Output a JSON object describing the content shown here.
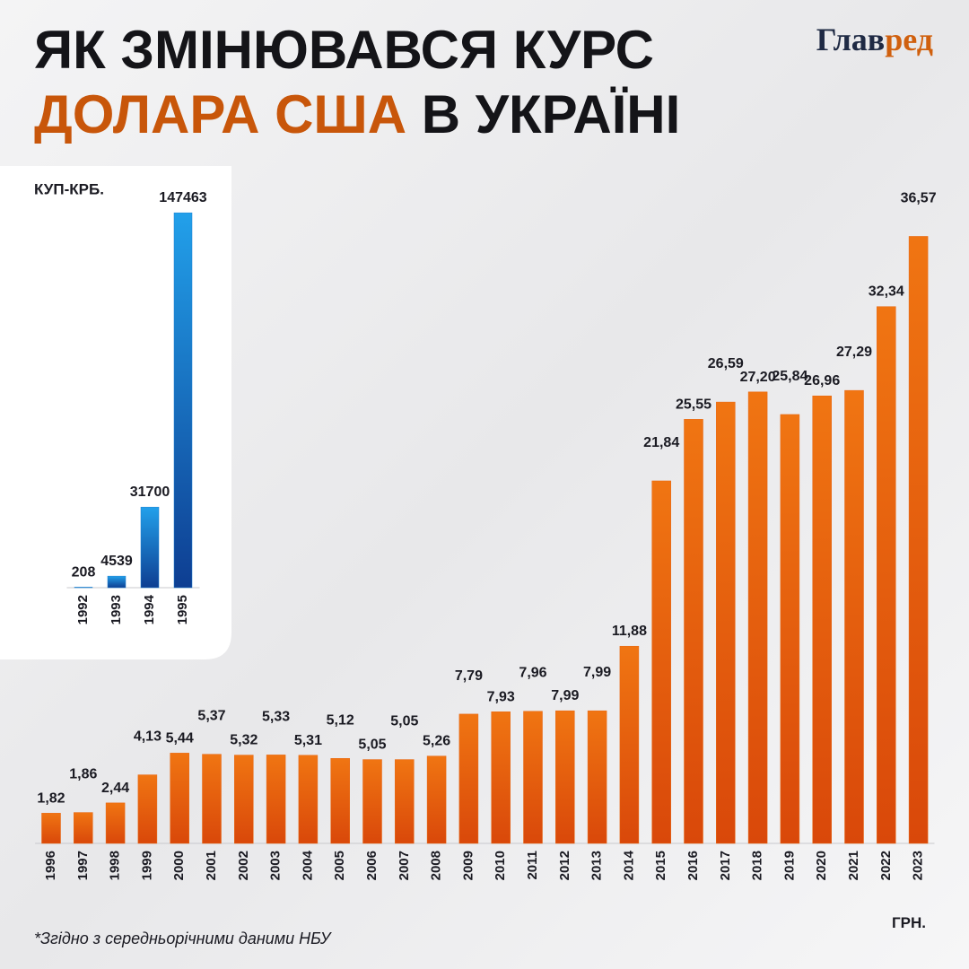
{
  "header": {
    "title_line1": "ЯК ЗМІНЮВАВСЯ КУРС",
    "title_line2_highlight": "ДОЛАРА США",
    "title_line2_rest": "В УКРАЇНІ",
    "logo_part1": "Глав",
    "logo_part2": "ред"
  },
  "footnote": "*Згідно з середньорічними даними НБУ",
  "chart_data": [
    {
      "type": "bar",
      "unit": "ГРН.",
      "color": "#e8650f",
      "categories": [
        "1996",
        "1997",
        "1998",
        "1999",
        "2000",
        "2001",
        "2002",
        "2003",
        "2004",
        "2005",
        "2006",
        "2007",
        "2008",
        "2009",
        "2010",
        "2011",
        "2012",
        "2013",
        "2014",
        "2015",
        "2016",
        "2017",
        "2018",
        "2019",
        "2020",
        "2021",
        "2022",
        "2023"
      ],
      "values": [
        1.82,
        1.86,
        2.44,
        4.13,
        5.44,
        5.37,
        5.32,
        5.33,
        5.31,
        5.12,
        5.05,
        5.05,
        5.26,
        7.79,
        7.93,
        7.96,
        7.99,
        7.99,
        11.88,
        21.84,
        25.55,
        26.59,
        27.2,
        25.84,
        26.96,
        27.29,
        32.34,
        36.57
      ],
      "value_labels": [
        "1,82",
        "1,86",
        "2,44",
        "4,13",
        "5,44",
        "5,37",
        "5,32",
        "5,33",
        "5,31",
        "5,12",
        "5,05",
        "5,05",
        "5,26",
        "7,79",
        "7,93",
        "7,96",
        "7,99",
        "7,99",
        "11,88",
        "21,84",
        "25,55",
        "26,59",
        "27,20",
        "25,84",
        "26,96",
        "27,29",
        "32,34",
        "36,57"
      ],
      "ylim": [
        0,
        40
      ]
    },
    {
      "type": "bar",
      "unit": "КУП-КРБ.",
      "color": "#1a7fd0",
      "categories": [
        "1992",
        "1993",
        "1994",
        "1995"
      ],
      "values": [
        208,
        4539,
        31700,
        147463
      ],
      "ylim": [
        0,
        150000
      ]
    }
  ]
}
